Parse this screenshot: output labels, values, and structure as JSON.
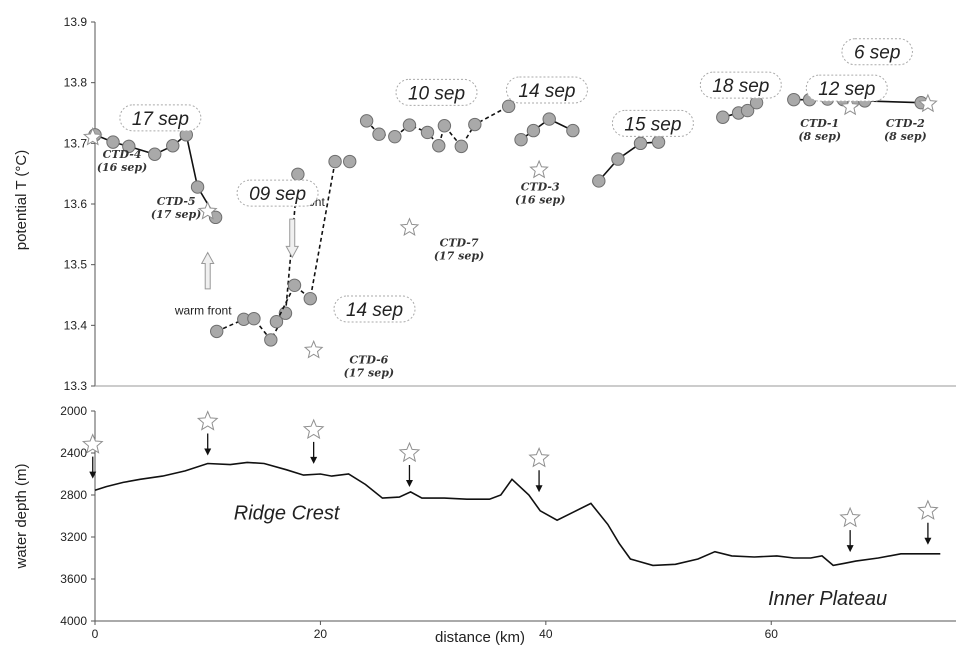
{
  "chart_data": [
    {
      "type": "scatter",
      "ylabel": "potential T (°C)",
      "xlim": [
        0,
        72
      ],
      "ylim": [
        13.3,
        13.9
      ],
      "yticks": [
        "13.3",
        "13.4",
        "13.5",
        "13.6",
        "13.7",
        "13.8",
        "13.9"
      ],
      "grid": false,
      "series": [
        {
          "name": "17 sep",
          "style": "solid",
          "x": [
            0.0,
            1.6,
            3.0,
            5.3,
            6.9,
            8.1,
            9.1,
            10.7
          ],
          "y": [
            13.714,
            13.702,
            13.695,
            13.682,
            13.696,
            13.714,
            13.628,
            13.578
          ],
          "label_pos": [
            5.8,
            13.742
          ]
        },
        {
          "name": "09 sep",
          "style": "dashed",
          "x": [
            10.8,
            13.2,
            14.1,
            15.6,
            16.9,
            18.0
          ],
          "y": [
            13.39,
            13.41,
            13.411,
            13.376,
            13.42,
            13.649
          ],
          "label_pos": [
            16.2,
            13.618
          ]
        },
        {
          "name": "14 sep",
          "style": "dashed",
          "x": [
            16.1,
            17.7,
            19.1,
            21.3,
            22.6
          ],
          "y": [
            13.406,
            13.466,
            13.444,
            13.67,
            13.67
          ],
          "label_pos": [
            24.8,
            13.427
          ]
        },
        {
          "name": "10 sep",
          "style": "dashed",
          "x": [
            24.1,
            25.2,
            26.6,
            27.9,
            29.5,
            30.5,
            31.0,
            32.5,
            33.7,
            36.7
          ],
          "y": [
            13.737,
            13.715,
            13.711,
            13.73,
            13.718,
            13.696,
            13.729,
            13.695,
            13.731,
            13.761
          ],
          "label_pos": [
            30.3,
            13.784
          ]
        },
        {
          "name": "14 sep (CTD-3 area)",
          "style": "solid",
          "x": [
            37.8,
            38.9,
            40.3,
            42.4
          ],
          "y": [
            13.706,
            13.721,
            13.74,
            13.721
          ],
          "label_pos": [
            40.1,
            13.788
          ]
        },
        {
          "name": "15 sep",
          "style": "solid",
          "x": [
            44.7,
            46.4,
            48.4,
            50.0
          ],
          "y": [
            13.638,
            13.674,
            13.7,
            13.702
          ],
          "label_pos": [
            49.5,
            13.733
          ]
        },
        {
          "name": "18 sep",
          "style": "solid",
          "x": [
            55.7,
            57.1,
            57.9,
            58.7
          ],
          "y": [
            13.743,
            13.75,
            13.754,
            13.767
          ],
          "label_pos": [
            57.3,
            13.796
          ]
        },
        {
          "name": "12 sep",
          "style": "solid",
          "x": [
            62.0,
            63.4,
            65.0,
            66.4,
            67.3,
            68.2
          ],
          "y": [
            13.772,
            13.772,
            13.773,
            13.772,
            13.77,
            13.775
          ],
          "label_pos": [
            66.7,
            13.791
          ]
        },
        {
          "name": "6 sep",
          "style": "solid",
          "x": [
            68.3,
            73.3
          ],
          "y": [
            13.77,
            13.767
          ],
          "label_pos": [
            69.4,
            13.851
          ]
        }
      ],
      "ctd_stations": [
        {
          "name": "CTD-4",
          "date": "(16 sep)",
          "x": -0.2,
          "y": 13.71,
          "label_x": 2.4,
          "label_y": 13.676
        },
        {
          "name": "CTD-5",
          "date": "(17 sep)",
          "x": 10.0,
          "y": 13.588,
          "label_x": 7.2,
          "label_y": 13.598
        },
        {
          "name": "CTD-6",
          "date": "(17 sep)",
          "x": 19.4,
          "y": 13.359,
          "label_x": 24.3,
          "label_y": 13.337
        },
        {
          "name": "CTD-7",
          "date": "(17 sep)",
          "x": 27.9,
          "y": 13.561,
          "label_x": 32.3,
          "label_y": 13.53
        },
        {
          "name": "CTD-3",
          "date": "(16 sep)",
          "x": 39.4,
          "y": 13.656,
          "label_x": 39.5,
          "label_y": 13.622
        },
        {
          "name": "CTD-1",
          "date": "(8 sep)",
          "x": 67.0,
          "y": 13.76,
          "label_x": 64.3,
          "label_y": 13.727
        },
        {
          "name": "CTD-2",
          "date": "(8 sep)",
          "x": 73.9,
          "y": 13.765,
          "label_x": 71.9,
          "label_y": 13.727
        }
      ],
      "annotations": [
        {
          "text": "warm front",
          "x": 9.6,
          "y": 13.418,
          "arrow": "up",
          "arrow_x": 10.0,
          "arrow_y": [
            13.46,
            13.52
          ]
        },
        {
          "text": "cold front",
          "x": 18.2,
          "y": 13.597,
          "arrow": "down",
          "arrow_x": 17.5,
          "arrow_y": [
            13.575,
            13.512
          ]
        }
      ]
    },
    {
      "type": "line",
      "xlabel": "distance (km)",
      "ylabel": "water depth (m)",
      "xlim": [
        0,
        72
      ],
      "ylim": [
        2000,
        4000
      ],
      "inverted_y": true,
      "xticks": [
        "0",
        "20",
        "40",
        "60"
      ],
      "yticks": [
        "2000",
        "2400",
        "2800",
        "3200",
        "3600",
        "4000"
      ],
      "grid": false,
      "bathymetry": {
        "x": [
          -0.5,
          1.0,
          2.5,
          4.0,
          6.0,
          8.0,
          10.0,
          12.0,
          13.5,
          15.0,
          17.0,
          18.5,
          20.0,
          21.0,
          22.5,
          24.0,
          25.5,
          27.0,
          28.0,
          29.0,
          31.0,
          33.0,
          35.0,
          36.0,
          37.0,
          38.5,
          39.5,
          41.0,
          42.5,
          44.0,
          45.5,
          46.5,
          47.5,
          49.5,
          51.5,
          53.5,
          55.0,
          56.5,
          58.5,
          60.5,
          62.0,
          63.5,
          64.5,
          65.5,
          66.5,
          67.5,
          69.5,
          71.5,
          73.5,
          75.0
        ],
        "depth": [
          2755,
          2720,
          2680,
          2650,
          2620,
          2570,
          2500,
          2510,
          2490,
          2500,
          2560,
          2610,
          2600,
          2620,
          2600,
          2700,
          2830,
          2820,
          2770,
          2830,
          2830,
          2840,
          2840,
          2800,
          2650,
          2800,
          2950,
          3040,
          2960,
          2880,
          3080,
          3260,
          3410,
          3470,
          3460,
          3410,
          3340,
          3380,
          3390,
          3380,
          3400,
          3400,
          3380,
          3470,
          3450,
          3430,
          3400,
          3360,
          3360,
          3360
        ]
      },
      "ctd_markers": [
        {
          "x": -0.2,
          "depth": 2320
        },
        {
          "x": 10.0,
          "depth": 2100
        },
        {
          "x": 19.4,
          "depth": 2180
        },
        {
          "x": 27.9,
          "depth": 2400
        },
        {
          "x": 39.4,
          "depth": 2450
        },
        {
          "x": 67.0,
          "depth": 3020
        },
        {
          "x": 73.9,
          "depth": 2950
        }
      ],
      "annotations": [
        {
          "text": "Ridge Crest",
          "x": 17.0,
          "depth": 2965
        },
        {
          "text": "Inner Plateau",
          "x": 65.0,
          "depth": 3780
        }
      ]
    }
  ],
  "colors": {
    "marker_fill": "#a9a9a9",
    "marker_edge": "#6e6e6e",
    "line": "#111111",
    "star": "#909090"
  }
}
